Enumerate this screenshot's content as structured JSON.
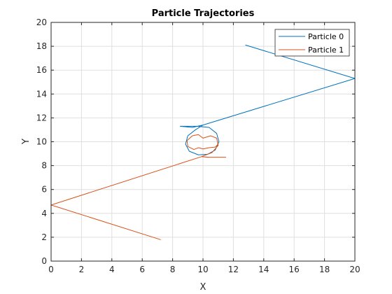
{
  "chart_data": {
    "type": "line",
    "title": "Particle Trajectories",
    "xlabel": "X",
    "ylabel": "Y",
    "xlim": [
      0,
      20
    ],
    "ylim": [
      0,
      20
    ],
    "xticks": [
      0,
      2,
      4,
      6,
      8,
      10,
      12,
      14,
      16,
      18,
      20
    ],
    "yticks": [
      0,
      2,
      4,
      6,
      8,
      10,
      12,
      14,
      16,
      18,
      20
    ],
    "grid": true,
    "legend_position": "top-right",
    "series": [
      {
        "name": "Particle 0",
        "color": "#0072BD",
        "points": [
          [
            12.8,
            18.1
          ],
          [
            20.0,
            15.3
          ],
          [
            10.0,
            11.4
          ],
          [
            9.3,
            11.2
          ],
          [
            8.5,
            11.3
          ],
          [
            9.6,
            11.3
          ],
          [
            10.4,
            11.2
          ],
          [
            10.9,
            10.7
          ],
          [
            11.05,
            10.0
          ],
          [
            10.8,
            9.3
          ],
          [
            10.3,
            8.95
          ],
          [
            9.7,
            8.9
          ],
          [
            9.1,
            9.2
          ],
          [
            8.85,
            9.8
          ],
          [
            9.0,
            10.5
          ],
          [
            9.5,
            11.0
          ],
          [
            10.0,
            11.4
          ]
        ]
      },
      {
        "name": "Particle 1",
        "color": "#D95319",
        "points": [
          [
            7.2,
            1.8
          ],
          [
            0.0,
            4.7
          ],
          [
            9.9,
            8.75
          ],
          [
            10.4,
            8.7
          ],
          [
            11.5,
            8.7
          ],
          [
            10.3,
            8.7
          ],
          [
            9.9,
            8.75
          ],
          [
            10.6,
            9.1
          ],
          [
            11.0,
            9.7
          ],
          [
            10.9,
            10.3
          ],
          [
            10.5,
            10.5
          ],
          [
            10.0,
            10.3
          ],
          [
            9.7,
            10.6
          ],
          [
            9.3,
            10.5
          ],
          [
            8.95,
            10.1
          ],
          [
            9.0,
            9.6
          ],
          [
            9.4,
            9.35
          ],
          [
            9.7,
            9.5
          ],
          [
            10.0,
            9.4
          ],
          [
            10.4,
            9.5
          ],
          [
            10.8,
            9.55
          ],
          [
            11.0,
            9.8
          ]
        ]
      }
    ]
  }
}
